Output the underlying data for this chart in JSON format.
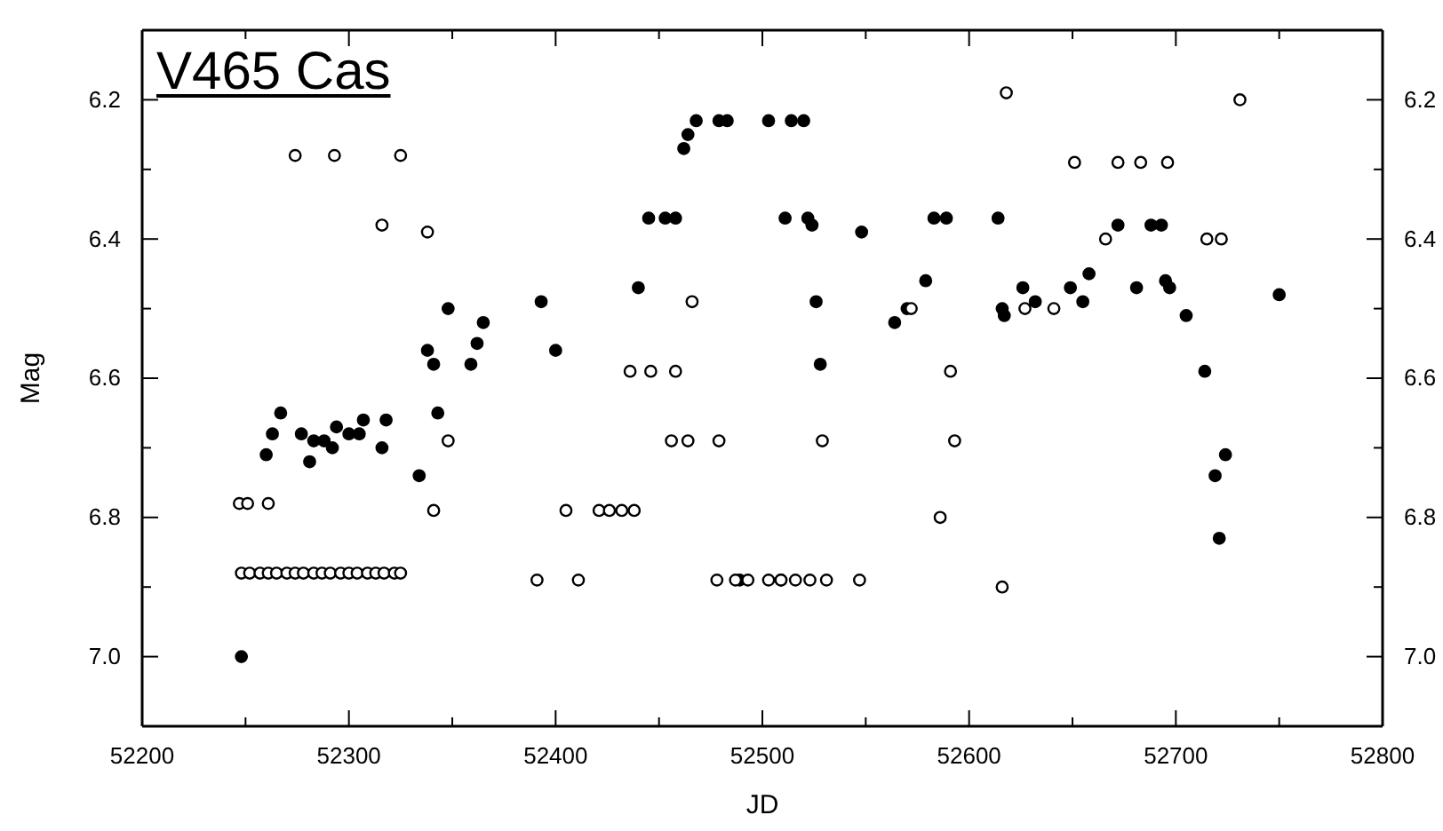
{
  "chart_data": {
    "type": "scatter",
    "title": "V465 Cas",
    "xlabel": "JD",
    "ylabel": "Mag",
    "xlim": [
      52200,
      52800
    ],
    "xticks": [
      52200,
      {
        "value": 52250,
        "label": null
      },
      52300,
      {
        "value": 52350,
        "label": null
      },
      52400,
      {
        "value": 52450,
        "label": null
      },
      52500,
      {
        "value": 52550,
        "label": null
      },
      52600,
      {
        "value": 52650,
        "label": null
      },
      52700,
      {
        "value": 52750,
        "label": null
      },
      52800
    ],
    "ylim": [
      7.1,
      6.1
    ],
    "yticks": [
      6.2,
      {
        "value": 6.3,
        "label": null
      },
      6.4,
      {
        "value": 6.5,
        "label": null
      },
      6.6,
      {
        "value": 6.7,
        "label": null
      },
      6.8,
      {
        "value": 6.9,
        "label": null
      },
      {
        "value": 7,
        "label": "7.0"
      }
    ],
    "y2lim": [
      7.1,
      6.1
    ],
    "y2ticks": [
      6.2,
      {
        "value": 6.3,
        "label": null
      },
      6.4,
      {
        "value": 6.5,
        "label": null
      },
      6.6,
      {
        "value": 6.7,
        "label": null
      },
      6.8,
      {
        "value": 6.9,
        "label": null
      },
      {
        "value": 7,
        "label": "7.0"
      }
    ],
    "grid": false,
    "marker": "circle",
    "series": [
      {
        "color": "#000000",
        "x": [
          52248,
          52260,
          52263,
          52267,
          52277,
          52281,
          52283,
          52288,
          52292,
          52294,
          52300,
          52305,
          52307,
          52316,
          52318,
          52334,
          52338,
          52341,
          52343,
          52348,
          52359,
          52362,
          52365,
          52393,
          52400,
          52440,
          52445,
          52453,
          52458,
          52462,
          52464,
          52468,
          52479,
          52483,
          52503,
          52514,
          52520,
          52511,
          52522,
          52524,
          52526,
          52528,
          52489,
          52509,
          52548,
          52583,
          52589,
          52614,
          52579,
          52564,
          52570,
          52616,
          52617,
          52626,
          52632,
          52649,
          52655,
          52658,
          52672,
          52688,
          52693,
          52681,
          52695,
          52697,
          52705,
          52750,
          52714,
          52724,
          52719,
          52721
        ],
        "values": [
          7.0,
          6.71,
          6.68,
          6.65,
          6.68,
          6.72,
          6.69,
          6.69,
          6.7,
          6.67,
          6.68,
          6.68,
          6.66,
          6.7,
          6.66,
          6.74,
          6.56,
          6.58,
          6.65,
          6.5,
          6.58,
          6.55,
          6.52,
          6.49,
          6.56,
          6.47,
          6.37,
          6.37,
          6.37,
          6.27,
          6.25,
          6.23,
          6.23,
          6.23,
          6.23,
          6.23,
          6.23,
          6.37,
          6.37,
          6.38,
          6.49,
          6.58,
          6.89,
          6.89,
          6.39,
          6.37,
          6.37,
          6.37,
          6.46,
          6.52,
          6.5,
          6.5,
          6.51,
          6.47,
          6.49,
          6.47,
          6.49,
          6.45,
          6.38,
          6.38,
          6.38,
          6.47,
          6.46,
          6.47,
          6.51,
          6.48,
          6.59,
          6.71,
          6.74,
          6.83
        ]
      },
      {
        "color": "#ffffff",
        "x": [
          52274,
          52293,
          52325,
          52316,
          52338,
          52348,
          52341,
          52247,
          52251,
          52261,
          52248,
          52252,
          52257,
          52261,
          52265,
          52270,
          52274,
          52278,
          52283,
          52287,
          52291,
          52296,
          52300,
          52304,
          52309,
          52313,
          52317,
          52322,
          52325,
          52466,
          52436,
          52446,
          52458,
          52456,
          52464,
          52479,
          52529,
          52405,
          52421,
          52426,
          52432,
          52438,
          52391,
          52411,
          52478,
          52487,
          52493,
          52503,
          52509,
          52516,
          52523,
          52531,
          52547,
          52618,
          52651,
          52672,
          52683,
          52696,
          52666,
          52572,
          52627,
          52641,
          52591,
          52593,
          52586,
          52616,
          52731,
          52715,
          52722
        ],
        "values": [
          6.28,
          6.28,
          6.28,
          6.38,
          6.39,
          6.69,
          6.79,
          6.78,
          6.78,
          6.78,
          6.88,
          6.88,
          6.88,
          6.88,
          6.88,
          6.88,
          6.88,
          6.88,
          6.88,
          6.88,
          6.88,
          6.88,
          6.88,
          6.88,
          6.88,
          6.88,
          6.88,
          6.88,
          6.88,
          6.49,
          6.59,
          6.59,
          6.59,
          6.69,
          6.69,
          6.69,
          6.69,
          6.79,
          6.79,
          6.79,
          6.79,
          6.79,
          6.89,
          6.89,
          6.89,
          6.89,
          6.89,
          6.89,
          6.89,
          6.89,
          6.89,
          6.89,
          6.89,
          6.19,
          6.29,
          6.29,
          6.29,
          6.29,
          6.4,
          6.5,
          6.5,
          6.5,
          6.59,
          6.69,
          6.8,
          6.9,
          6.2,
          6.4,
          6.4
        ]
      }
    ]
  }
}
